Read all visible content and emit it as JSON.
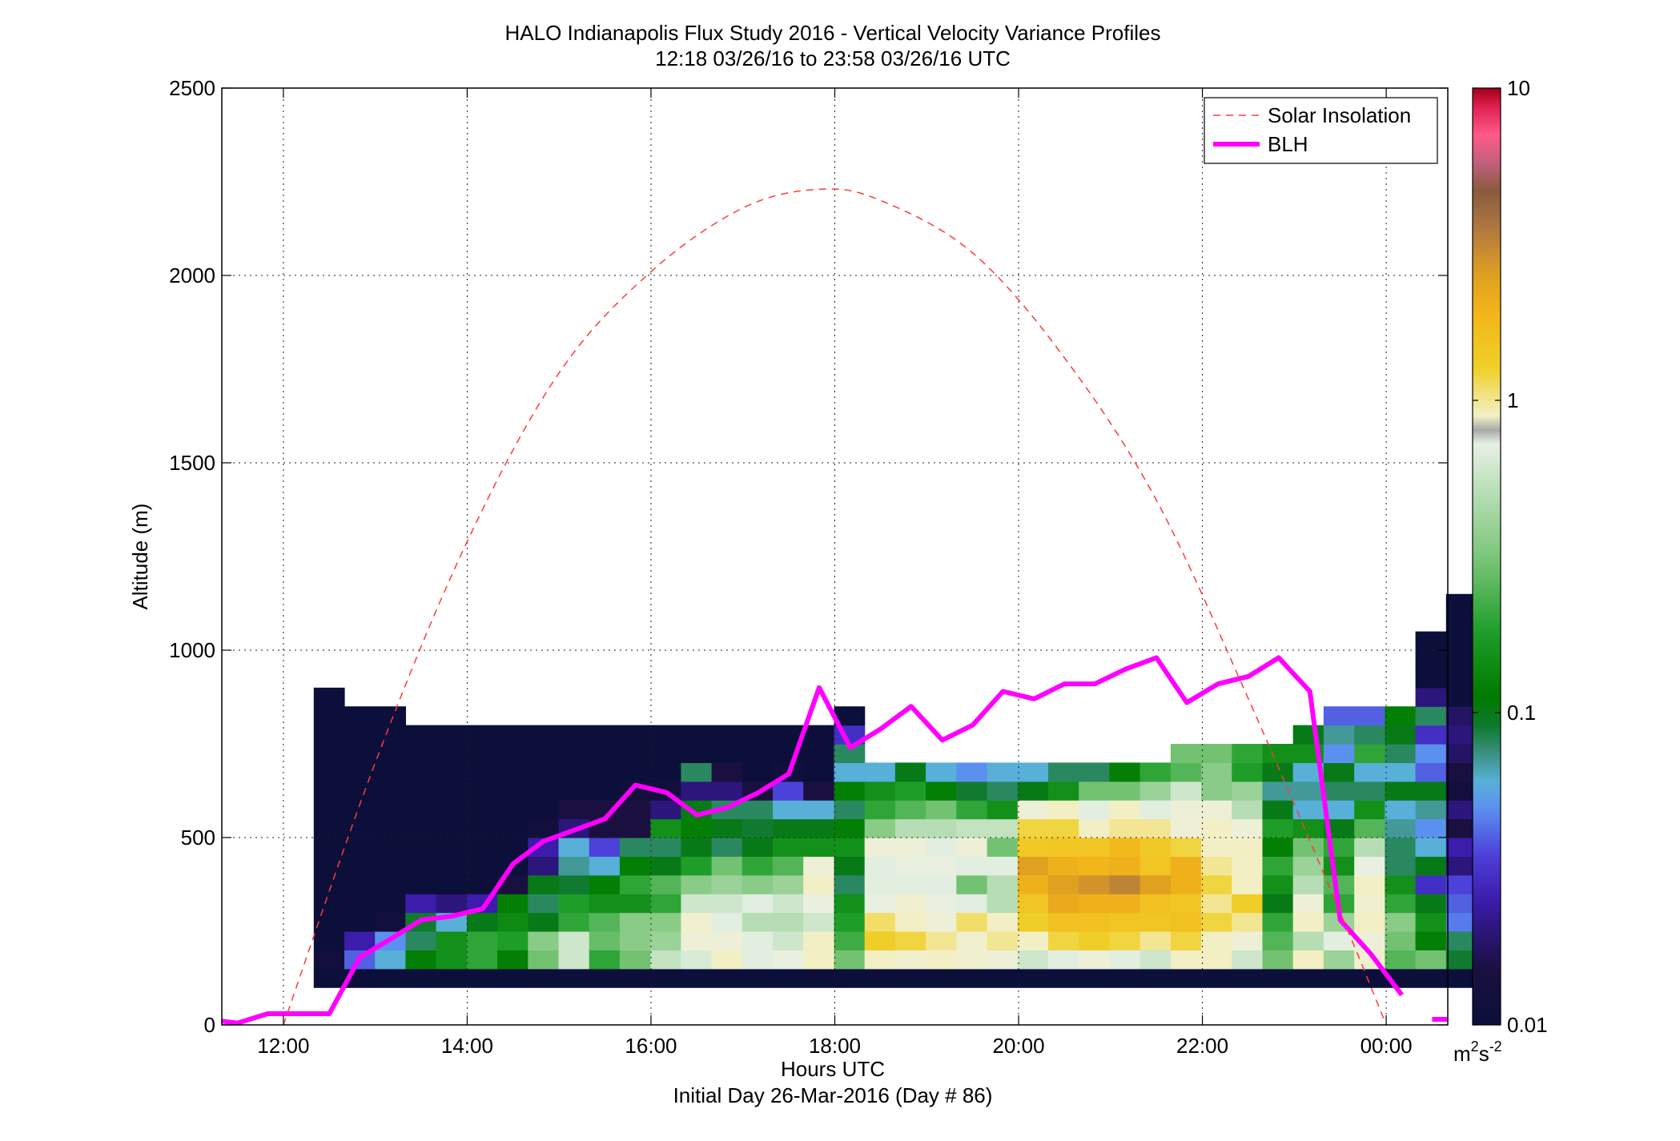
{
  "chart_data": {
    "type": "heatmap",
    "title": "HALO Indianapolis Flux Study 2016 - Vertical Velocity Variance Profiles",
    "subtitle": "12:18 03/26/16 to 23:58 03/26/16  UTC",
    "xlabel": "Hours UTC",
    "xlabel2": "Initial Day 26-Mar-2016 (Day # 86)",
    "ylabel": "Altitude (m)",
    "x_range_hours": [
      11.33,
      24.67
    ],
    "y_range_m": [
      0,
      2500
    ],
    "x_ticks": [
      {
        "value": 12,
        "label": "12:00"
      },
      {
        "value": 14,
        "label": "14:00"
      },
      {
        "value": 16,
        "label": "16:00"
      },
      {
        "value": 18,
        "label": "18:00"
      },
      {
        "value": 20,
        "label": "20:00"
      },
      {
        "value": 22,
        "label": "22:00"
      },
      {
        "value": 24,
        "label": "00:00"
      }
    ],
    "y_ticks": [
      {
        "value": 0,
        "label": "0"
      },
      {
        "value": 500,
        "label": "500"
      },
      {
        "value": 1000,
        "label": "1000"
      },
      {
        "value": 1500,
        "label": "1500"
      },
      {
        "value": 2000,
        "label": "2000"
      },
      {
        "value": 2500,
        "label": "2500"
      }
    ],
    "grid": "dotted",
    "legend_position": "top-right",
    "legend": [
      {
        "name": "Solar Insolation",
        "style": "dashed",
        "color": "#ff3b3b"
      },
      {
        "name": "BLH",
        "style": "solid",
        "color": "#ff00ff"
      }
    ],
    "colorbar": {
      "scale": "log",
      "ticks": [
        {
          "value": 0.01,
          "label": "0.01"
        },
        {
          "value": 0.1,
          "label": "0.1"
        },
        {
          "value": 1,
          "label": "1"
        },
        {
          "value": 10,
          "label": "10"
        }
      ],
      "unit_base": "m",
      "unit_sup1": "2",
      "unit_mid": "s",
      "unit_sup2": "-2"
    },
    "series": [
      {
        "name": "BLH",
        "x": [
          11.33,
          11.5,
          11.83,
          12.17,
          12.5,
          12.83,
          13.17,
          13.5,
          13.83,
          14.17,
          14.5,
          14.83,
          15.17,
          15.5,
          15.83,
          16.17,
          16.5,
          16.83,
          17.17,
          17.5,
          17.83,
          18.17,
          18.5,
          18.83,
          19.17,
          19.5,
          19.83,
          20.17,
          20.5,
          20.83,
          21.17,
          21.5,
          21.83,
          22.17,
          22.5,
          22.83,
          23.17,
          23.5,
          23.83,
          24.17
        ],
        "y": [
          10,
          5,
          30,
          30,
          30,
          180,
          230,
          280,
          290,
          310,
          430,
          490,
          520,
          550,
          640,
          620,
          560,
          580,
          620,
          670,
          900,
          740,
          790,
          850,
          760,
          800,
          890,
          870,
          910,
          910,
          950,
          980,
          860,
          910,
          930,
          980,
          890,
          280,
          190,
          80
        ]
      },
      {
        "name": "Solar Insolation",
        "x": [
          12.0,
          13.0,
          14.0,
          15.0,
          16.0,
          17.0,
          17.83,
          18.5,
          19.5,
          20.5,
          21.5,
          22.5,
          23.5,
          24.0
        ],
        "y": [
          0,
          700,
          1290,
          1740,
          2010,
          2180,
          2230,
          2200,
          2060,
          1780,
          1400,
          870,
          300,
          0
        ]
      }
    ],
    "heatmap": {
      "x_start_hours": 12.33,
      "cell_width_hours": 0.333,
      "cell_height_m": 50,
      "base_m": 100,
      "columns": [
        [
          0.01,
          0.012,
          0.01,
          0.01,
          0.01,
          0.01,
          0.01,
          0.01,
          0.01,
          0.01,
          0.01,
          0.01,
          0.01,
          0.01,
          0.01,
          0.01
        ],
        [
          0.01,
          0.04,
          0.025,
          0.01,
          0.01,
          0.01,
          0.01,
          0.01,
          0.01,
          0.01,
          0.01,
          0.01,
          0.01,
          0.01,
          0.01
        ],
        [
          0.01,
          0.06,
          0.05,
          0.012,
          0.01,
          0.01,
          0.01,
          0.01,
          0.01,
          0.01,
          0.01,
          0.01,
          0.01,
          0.01,
          0.01
        ],
        [
          0.01,
          0.12,
          0.08,
          0.09,
          0.025,
          0.01,
          0.01,
          0.01,
          0.01,
          0.01,
          0.01,
          0.01,
          0.01,
          0.01
        ],
        [
          0.01,
          0.15,
          0.15,
          0.06,
          0.02,
          0.01,
          0.01,
          0.01,
          0.01,
          0.01,
          0.01,
          0.01,
          0.01,
          0.01
        ],
        [
          0.01,
          0.2,
          0.2,
          0.1,
          0.025,
          0.01,
          0.01,
          0.01,
          0.01,
          0.01,
          0.01,
          0.01,
          0.01,
          0.01
        ],
        [
          0.01,
          0.12,
          0.18,
          0.14,
          0.12,
          0.015,
          0.01,
          0.01,
          0.01,
          0.01,
          0.01,
          0.01,
          0.01,
          0.01
        ],
        [
          0.01,
          0.3,
          0.35,
          0.1,
          0.08,
          0.1,
          0.02,
          0.025,
          0.012,
          0.01,
          0.01,
          0.01,
          0.01,
          0.01
        ],
        [
          0.01,
          0.6,
          0.6,
          0.2,
          0.18,
          0.09,
          0.07,
          0.06,
          0.02,
          0.015,
          0.01,
          0.01,
          0.01,
          0.01
        ],
        [
          0.01,
          0.2,
          0.28,
          0.25,
          0.15,
          0.12,
          0.06,
          0.035,
          0.015,
          0.015,
          0.01,
          0.01,
          0.01,
          0.01
        ],
        [
          0.01,
          0.3,
          0.35,
          0.35,
          0.15,
          0.2,
          0.12,
          0.08,
          0.015,
          0.015,
          0.012,
          0.01,
          0.01,
          0.01
        ],
        [
          0.01,
          0.55,
          0.4,
          0.35,
          0.2,
          0.25,
          0.1,
          0.08,
          0.15,
          0.02,
          0.012,
          0.01,
          0.01,
          0.01
        ],
        [
          0.01,
          0.65,
          0.8,
          0.85,
          0.6,
          0.35,
          0.18,
          0.1,
          0.12,
          0.1,
          0.02,
          0.08,
          0.01,
          0.01
        ],
        [
          0.01,
          0.9,
          0.8,
          0.7,
          0.6,
          0.4,
          0.3,
          0.08,
          0.1,
          0.08,
          0.02,
          0.015,
          0.01,
          0.01
        ],
        [
          0.01,
          0.7,
          0.7,
          0.5,
          0.7,
          0.35,
          0.2,
          0.1,
          0.09,
          0.08,
          0.015,
          0.01,
          0.01,
          0.01
        ],
        [
          0.01,
          0.75,
          0.6,
          0.5,
          0.6,
          0.4,
          0.25,
          0.15,
          0.1,
          0.06,
          0.035,
          0.012,
          0.01,
          0.01
        ],
        [
          0.01,
          0.9,
          0.9,
          0.6,
          0.75,
          0.9,
          0.8,
          0.15,
          0.1,
          0.06,
          0.015,
          0.01,
          0.01,
          0.01
        ],
        [
          0.01,
          0.3,
          0.22,
          0.18,
          0.15,
          0.08,
          0.1,
          0.15,
          0.12,
          0.08,
          0.12,
          0.06,
          0.08,
          0.03,
          0.01
        ],
        [
          0.01,
          0.9,
          1.3,
          1.1,
          0.75,
          0.7,
          0.7,
          0.8,
          0.35,
          0.2,
          0.15,
          0.06
        ],
        [
          0.01,
          0.85,
          1.2,
          0.9,
          0.85,
          0.7,
          0.75,
          0.8,
          0.5,
          0.25,
          0.18,
          0.1
        ],
        [
          0.01,
          0.9,
          1.0,
          0.8,
          0.75,
          0.7,
          0.75,
          0.7,
          0.5,
          0.3,
          0.12,
          0.06
        ],
        [
          0.01,
          0.85,
          0.85,
          1.1,
          0.7,
          0.3,
          0.7,
          0.8,
          0.55,
          0.2,
          0.09,
          0.05
        ],
        [
          0.01,
          0.8,
          1.0,
          0.9,
          0.5,
          0.5,
          0.7,
          0.3,
          0.55,
          0.15,
          0.08,
          0.06
        ],
        [
          0.01,
          0.6,
          0.9,
          1.3,
          1.5,
          2.0,
          2.5,
          1.4,
          1.2,
          0.8,
          0.1,
          0.06
        ],
        [
          0.01,
          0.7,
          1.2,
          1.6,
          2.2,
          2.5,
          2.0,
          1.5,
          1.2,
          0.9,
          0.15,
          0.08
        ],
        [
          0.01,
          0.8,
          1.3,
          1.6,
          2.0,
          2.8,
          1.9,
          1.5,
          0.9,
          0.7,
          0.3,
          0.08
        ],
        [
          0.01,
          0.7,
          1.2,
          1.5,
          2.0,
          3.2,
          2.0,
          1.8,
          1.0,
          0.9,
          0.3,
          0.12
        ],
        [
          0.01,
          0.6,
          1.0,
          1.5,
          1.6,
          2.5,
          1.5,
          1.4,
          1.0,
          0.7,
          0.4,
          0.2
        ],
        [
          0.01,
          0.9,
          1.2,
          1.6,
          1.5,
          2.0,
          2.0,
          1.2,
          0.8,
          0.8,
          0.6,
          0.25,
          0.3
        ],
        [
          0.01,
          0.9,
          0.9,
          1.2,
          1.0,
          1.2,
          1.0,
          0.9,
          0.9,
          0.8,
          0.35,
          0.35,
          0.3
        ],
        [
          0.01,
          0.6,
          0.8,
          1.0,
          1.3,
          0.9,
          0.9,
          0.9,
          0.8,
          0.5,
          0.4,
          0.18,
          0.2
        ],
        [
          0.01,
          0.3,
          0.25,
          0.2,
          0.1,
          0.15,
          0.2,
          0.12,
          0.18,
          0.1,
          0.07,
          0.1,
          0.15
        ],
        [
          0.01,
          0.9,
          0.5,
          0.9,
          0.8,
          0.5,
          0.4,
          0.3,
          0.15,
          0.06,
          0.07,
          0.06,
          0.15,
          0.1
        ],
        [
          0.01,
          0.4,
          0.7,
          0.4,
          0.2,
          0.25,
          0.15,
          0.2,
          0.1,
          0.06,
          0.08,
          0.1,
          0.05,
          0.07,
          0.04
        ],
        [
          0.01,
          0.85,
          0.8,
          0.9,
          0.85,
          0.9,
          0.75,
          0.5,
          0.25,
          0.15,
          0.08,
          0.06,
          0.2,
          0.08,
          0.04
        ],
        [
          0.01,
          0.25,
          0.3,
          0.35,
          0.2,
          0.15,
          0.08,
          0.08,
          0.07,
          0.06,
          0.1,
          0.06,
          0.08,
          0.1,
          0.12
        ],
        [
          0.01,
          0.3,
          0.12,
          0.15,
          0.1,
          0.03,
          0.1,
          0.06,
          0.05,
          0.07,
          0.1,
          0.04,
          0.05,
          0.03,
          0.08,
          0.02,
          0.01,
          0.01,
          0.01
        ],
        [
          0.01,
          0.09,
          0.08,
          0.045,
          0.04,
          0.035,
          0.02,
          0.025,
          0.015,
          0.02,
          0.012,
          0.015,
          0.018,
          0.02,
          0.018,
          0.01,
          0.01,
          0.01,
          0.01,
          0.01,
          0.01
        ]
      ]
    }
  }
}
